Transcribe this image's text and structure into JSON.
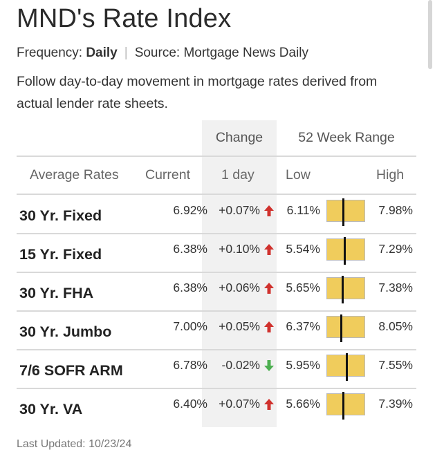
{
  "title": "MND's Rate Index",
  "frequency_label": "Frequency:",
  "frequency_value": "Daily",
  "source_text": "Source: Mortgage News Daily",
  "description": "Follow day-to-day movement in mortgage rates derived from actual lender rate sheets.",
  "top_headers": {
    "change": "Change",
    "range": "52 Week Range"
  },
  "headers": {
    "average_rates": "Average Rates",
    "current": "Current",
    "one_day": "1 day",
    "low": "Low",
    "high": "High"
  },
  "colors": {
    "up": "#d0312d",
    "down": "#4caf50",
    "range_bar": "#f0cc5c"
  },
  "rows": [
    {
      "name": "30 Yr. Fixed",
      "current": "6.92%",
      "change": "+0.07%",
      "direction": "up",
      "low": "6.11%",
      "high": "7.98%",
      "range_position": 0.43
    },
    {
      "name": "15 Yr. Fixed",
      "current": "6.38%",
      "change": "+0.10%",
      "direction": "up",
      "low": "5.54%",
      "high": "7.29%",
      "range_position": 0.48
    },
    {
      "name": "30 Yr. FHA",
      "current": "6.38%",
      "change": "+0.06%",
      "direction": "up",
      "low": "5.65%",
      "high": "7.38%",
      "range_position": 0.42
    },
    {
      "name": "30 Yr. Jumbo",
      "current": "7.00%",
      "change": "+0.05%",
      "direction": "up",
      "low": "6.37%",
      "high": "8.05%",
      "range_position": 0.38
    },
    {
      "name": "7/6 SOFR ARM",
      "current": "6.78%",
      "change": "-0.02%",
      "direction": "down",
      "low": "5.95%",
      "high": "7.55%",
      "range_position": 0.52
    },
    {
      "name": "30 Yr. VA",
      "current": "6.40%",
      "change": "+0.07%",
      "direction": "up",
      "low": "5.66%",
      "high": "7.39%",
      "range_position": 0.43
    }
  ],
  "last_updated": "Last Updated: 10/23/24"
}
